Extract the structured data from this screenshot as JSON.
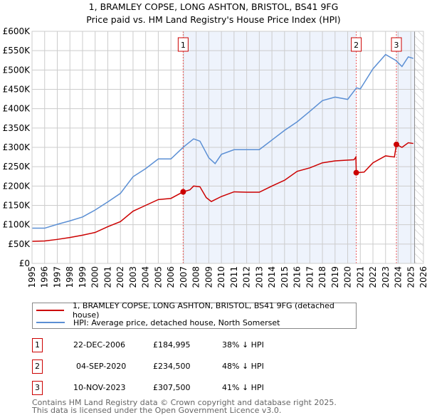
{
  "title_line1": "1, BRAMLEY COPSE, LONG ASHTON, BRISTOL, BS41 9FG",
  "title_line2": "Price paid vs. HM Land Registry's House Price Index (HPI)",
  "colors": {
    "property": "#cc0000",
    "hpi": "#5b8fd4",
    "shade": "#eef3fc",
    "grid": "#cccccc"
  },
  "chart_data": {
    "type": "line",
    "xlim": [
      1995,
      2026
    ],
    "ylim": [
      0,
      600000
    ],
    "x_ticks": [
      "1995",
      "1996",
      "1997",
      "1998",
      "1999",
      "2000",
      "2001",
      "2002",
      "2003",
      "2004",
      "2005",
      "2006",
      "2007",
      "2008",
      "2009",
      "2010",
      "2011",
      "2012",
      "2013",
      "2014",
      "2015",
      "2016",
      "2017",
      "2018",
      "2019",
      "2020",
      "2021",
      "2022",
      "2023",
      "2024",
      "2025",
      "2026"
    ],
    "y_ticks": [
      {
        "v": 0,
        "label": "£0"
      },
      {
        "v": 50000,
        "label": "£50K"
      },
      {
        "v": 100000,
        "label": "£100K"
      },
      {
        "v": 150000,
        "label": "£150K"
      },
      {
        "v": 200000,
        "label": "£200K"
      },
      {
        "v": 250000,
        "label": "£250K"
      },
      {
        "v": 300000,
        "label": "£300K"
      },
      {
        "v": 350000,
        "label": "£350K"
      },
      {
        "v": 400000,
        "label": "£400K"
      },
      {
        "v": 450000,
        "label": "£450K"
      },
      {
        "v": 500000,
        "label": "£500K"
      },
      {
        "v": 550000,
        "label": "£550K"
      },
      {
        "v": 600000,
        "label": "£600K"
      }
    ],
    "grid": true,
    "shaded_ranges": [
      [
        2006.97,
        2020.68
      ],
      [
        2023.86,
        2025.3
      ]
    ],
    "hatched_range": [
      2025.3,
      2026
    ],
    "series": [
      {
        "name": "1, BRAMLEY COPSE, LONG ASHTON, BRISTOL, BS41 9FG (detached house)",
        "color": "#cc0000",
        "points": [
          [
            1995,
            57000
          ],
          [
            1996,
            58000
          ],
          [
            1997,
            62000
          ],
          [
            1998,
            67000
          ],
          [
            1999,
            73000
          ],
          [
            2000,
            80000
          ],
          [
            2001,
            95000
          ],
          [
            2002,
            108000
          ],
          [
            2003,
            135000
          ],
          [
            2004,
            150000
          ],
          [
            2005,
            165000
          ],
          [
            2006,
            168000
          ],
          [
            2006.97,
            184995
          ],
          [
            2007.5,
            190000
          ],
          [
            2007.8,
            200000
          ],
          [
            2008.3,
            198000
          ],
          [
            2008.8,
            170000
          ],
          [
            2009.2,
            160000
          ],
          [
            2010,
            173000
          ],
          [
            2011,
            185000
          ],
          [
            2012,
            184000
          ],
          [
            2013,
            184000
          ],
          [
            2014,
            200000
          ],
          [
            2015,
            215000
          ],
          [
            2016,
            238000
          ],
          [
            2017,
            247000
          ],
          [
            2018,
            260000
          ],
          [
            2019,
            265000
          ],
          [
            2020.5,
            268000
          ],
          [
            2020.65,
            275000
          ],
          [
            2020.68,
            234500
          ],
          [
            2021.3,
            236000
          ],
          [
            2022,
            260000
          ],
          [
            2023,
            278000
          ],
          [
            2023.7,
            275000
          ],
          [
            2023.86,
            307500
          ],
          [
            2024.3,
            300000
          ],
          [
            2024.8,
            312000
          ],
          [
            2025.2,
            310000
          ]
        ]
      },
      {
        "name": "HPI: Average price, detached house, North Somerset",
        "color": "#5b8fd4",
        "points": [
          [
            1995,
            91000
          ],
          [
            1996,
            91000
          ],
          [
            1997,
            101000
          ],
          [
            1998,
            110000
          ],
          [
            1999,
            120000
          ],
          [
            2000,
            138000
          ],
          [
            2001,
            159000
          ],
          [
            2002,
            181000
          ],
          [
            2003,
            224000
          ],
          [
            2004,
            245000
          ],
          [
            2005,
            270000
          ],
          [
            2006,
            270000
          ],
          [
            2007,
            301000
          ],
          [
            2007.8,
            322000
          ],
          [
            2008.3,
            316000
          ],
          [
            2009,
            273000
          ],
          [
            2009.5,
            258000
          ],
          [
            2010,
            282000
          ],
          [
            2011,
            294000
          ],
          [
            2012,
            294000
          ],
          [
            2013,
            294000
          ],
          [
            2014,
            319000
          ],
          [
            2015,
            344000
          ],
          [
            2016,
            366000
          ],
          [
            2017,
            393000
          ],
          [
            2018,
            421000
          ],
          [
            2019,
            430000
          ],
          [
            2020,
            424000
          ],
          [
            2020.7,
            454000
          ],
          [
            2021,
            451000
          ],
          [
            2022,
            503000
          ],
          [
            2023,
            540000
          ],
          [
            2023.8,
            525000
          ],
          [
            2024.3,
            509000
          ],
          [
            2024.8,
            534000
          ],
          [
            2025.2,
            530000
          ]
        ]
      }
    ],
    "sales": [
      {
        "label": "1",
        "x": 2006.97,
        "y": 184995
      },
      {
        "label": "2",
        "x": 2020.68,
        "y": 234500
      },
      {
        "label": "3",
        "x": 2023.86,
        "y": 307500
      }
    ]
  },
  "legend": [
    {
      "label": "1, BRAMLEY COPSE, LONG ASHTON, BRISTOL, BS41 9FG (detached house)",
      "color": "#cc0000"
    },
    {
      "label": "HPI: Average price, detached house, North Somerset",
      "color": "#5b8fd4"
    }
  ],
  "transactions": [
    {
      "num": "1",
      "date": "22-DEC-2006",
      "price": "£184,995",
      "hpi": "38% ↓ HPI"
    },
    {
      "num": "2",
      "date": "04-SEP-2020",
      "price": "£234,500",
      "hpi": "48% ↓ HPI"
    },
    {
      "num": "3",
      "date": "10-NOV-2023",
      "price": "£307,500",
      "hpi": "41% ↓ HPI"
    }
  ],
  "footer_line1": "Contains HM Land Registry data © Crown copyright and database right 2025.",
  "footer_line2": "This data is licensed under the Open Government Licence v3.0."
}
